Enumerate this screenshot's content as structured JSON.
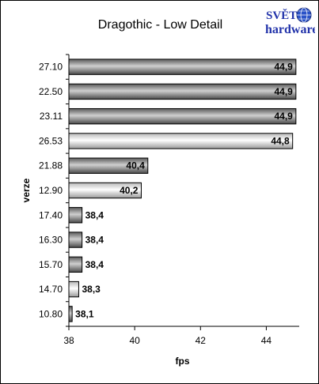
{
  "chart_data": {
    "type": "bar",
    "orientation": "horizontal",
    "title": "Dragothic - Low Detail",
    "xlabel": "fps",
    "ylabel": "verze",
    "xlim": [
      38,
      45
    ],
    "xticks": [
      38,
      40,
      42,
      44
    ],
    "grid": false,
    "categories": [
      "27.10",
      "22.50",
      "23.11",
      "26.53",
      "21.88",
      "12.90",
      "17.40",
      "16.30",
      "15.70",
      "14.70",
      "10.80"
    ],
    "values": [
      44.9,
      44.9,
      44.9,
      44.8,
      40.4,
      40.2,
      38.4,
      38.4,
      38.4,
      38.3,
      38.1
    ],
    "value_labels": [
      "44,9",
      "44,9",
      "44,9",
      "44,8",
      "40,4",
      "40,2",
      "38,4",
      "38,4",
      "38,4",
      "38,3",
      "38,1"
    ],
    "styles": [
      "dark",
      "dark",
      "dark",
      "light",
      "dark",
      "light",
      "dark",
      "dark",
      "dark",
      "light",
      "dark"
    ]
  },
  "logo": {
    "line1": "SVĚT",
    "line2": "hardware"
  },
  "colors": {
    "dark_bar": "#8a8a8a",
    "light_bar": "#ffffff",
    "logo_blue": "#2233aa"
  }
}
